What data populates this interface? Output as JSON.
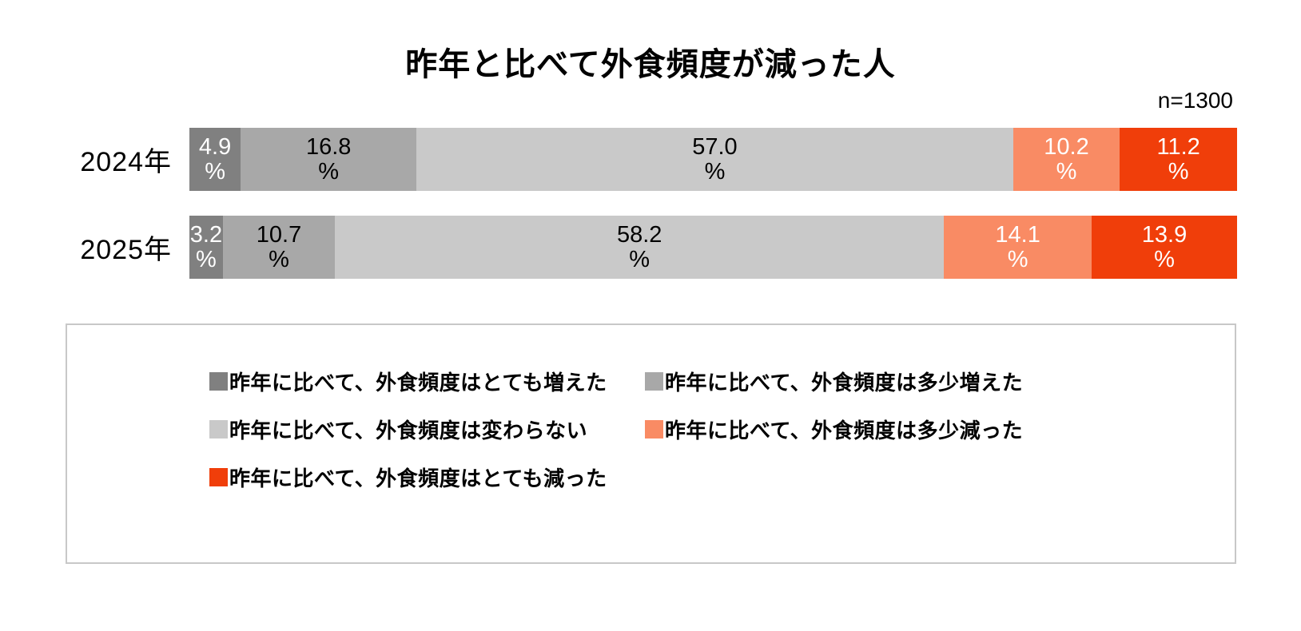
{
  "title": "昨年と比べて外食頻度が減った人",
  "sample_size_label": "n=1300",
  "chart_data": {
    "type": "bar",
    "orientation": "horizontal-stacked",
    "unit": "%",
    "xlim": [
      0,
      100
    ],
    "categories": [
      "2024年",
      "2025年"
    ],
    "series": [
      {
        "name": "昨年に比べて、外食頻度はとても増えた",
        "color": "#808080",
        "text_color": "#ffffff",
        "values": [
          4.9,
          3.2
        ]
      },
      {
        "name": "昨年に比べて、外食頻度は多少増えた",
        "color": "#a8a8a8",
        "text_color": "#000000",
        "values": [
          16.8,
          10.7
        ]
      },
      {
        "name": "昨年に比べて、外食頻度は変わらない",
        "color": "#c9c9c9",
        "text_color": "#000000",
        "values": [
          57.0,
          58.2
        ]
      },
      {
        "name": "昨年に比べて、外食頻度は多少減った",
        "color": "#f98b64",
        "text_color": "#ffffff",
        "values": [
          10.2,
          14.1
        ]
      },
      {
        "name": "昨年に比べて、外食頻度はとても減った",
        "color": "#f03e0a",
        "text_color": "#ffffff",
        "values": [
          11.2,
          13.9
        ]
      }
    ],
    "legend": {
      "columns": 2,
      "border_color": "#c8c8c8",
      "position": "bottom"
    }
  }
}
